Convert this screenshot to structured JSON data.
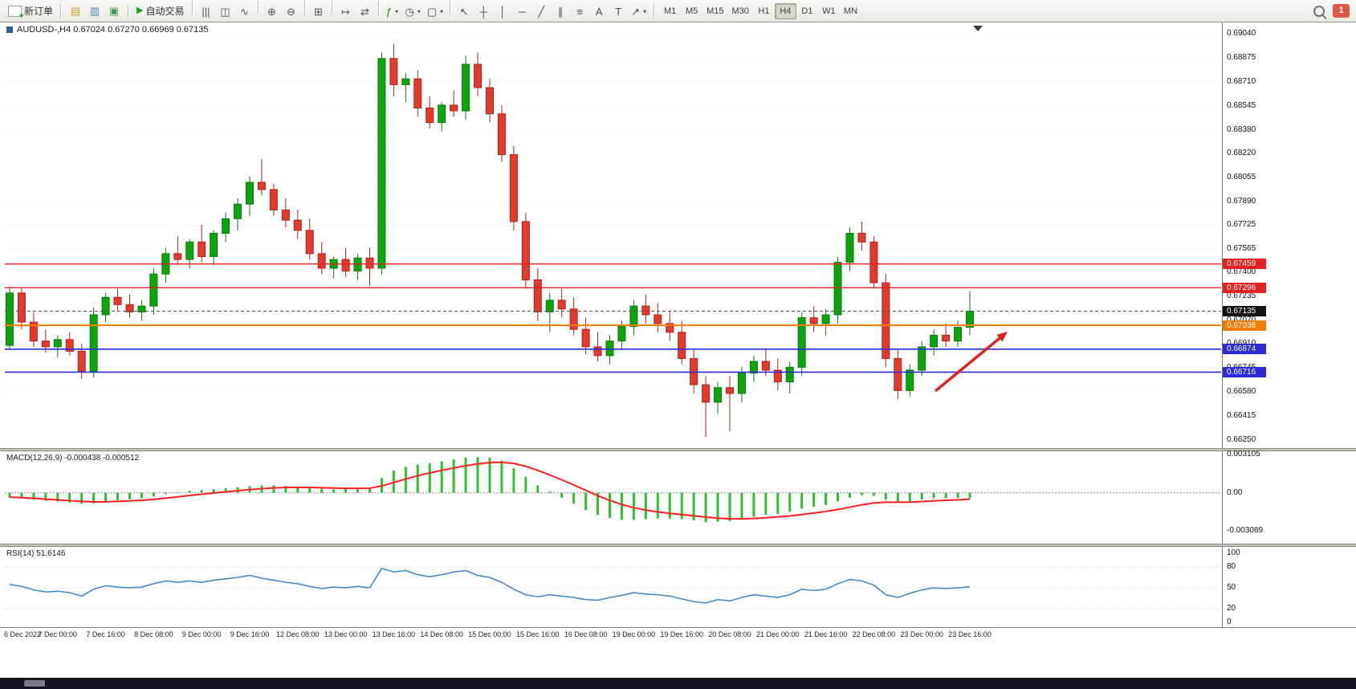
{
  "toolbar": {
    "new_order_label": "新订单",
    "autotrading_label": "自动交易",
    "autotrading_glyph": "▶",
    "notification_count": "1",
    "left_icons": [
      {
        "name": "market-watch-icon",
        "glyph": "▤",
        "color": "#C9A227"
      },
      {
        "name": "navigator-icon",
        "glyph": "▥",
        "color": "#4A7EBB"
      },
      {
        "name": "terminal-icon",
        "glyph": "▣",
        "color": "#3F9B4E"
      }
    ],
    "icon_buttons": [
      {
        "name": "bar-chart-icon",
        "glyph": "|||",
        "sep_before": true
      },
      {
        "name": "candlestick-chart-icon",
        "glyph": "◫"
      },
      {
        "name": "line-chart-icon",
        "glyph": "∿"
      },
      {
        "name": "zoom-in-icon",
        "glyph": "⊕",
        "sep_before": true
      },
      {
        "name": "zoom-out-icon",
        "glyph": "⊖"
      },
      {
        "name": "tile-windows-icon",
        "glyph": "⊞",
        "sep_before": true
      },
      {
        "name": "auto-scroll-icon",
        "glyph": "↦",
        "sep_before": true
      },
      {
        "name": "chart-shift-icon",
        "glyph": "⇄"
      },
      {
        "name": "indicators-icon",
        "glyph": "ƒ",
        "color": "#1e8f1e",
        "dropdown": true,
        "sep_before": true
      },
      {
        "name": "periods-icon",
        "glyph": "◷",
        "dropdown": true
      },
      {
        "name": "templates-icon",
        "glyph": "▢",
        "dropdown": true
      },
      {
        "name": "cursor-icon",
        "glyph": "↖",
        "sep_before": true
      },
      {
        "name": "crosshair-icon",
        "glyph": "┼"
      },
      {
        "name": "vertical-line-icon",
        "glyph": "│"
      },
      {
        "name": "horizontal-line-icon",
        "glyph": "─"
      },
      {
        "name": "trendline-icon",
        "glyph": "╱"
      },
      {
        "name": "channel-icon",
        "glyph": "∥"
      },
      {
        "name": "fibonacci-icon",
        "glyph": "≡"
      },
      {
        "name": "text-icon",
        "glyph": "A"
      },
      {
        "name": "label-icon",
        "glyph": "T"
      },
      {
        "name": "arrows-icon",
        "glyph": "↗",
        "dropdown": true
      }
    ],
    "timeframes": [
      {
        "label": "M1"
      },
      {
        "label": "M5"
      },
      {
        "label": "M15"
      },
      {
        "label": "M30"
      },
      {
        "label": "H1"
      },
      {
        "label": "H4",
        "active": true
      },
      {
        "label": "D1"
      },
      {
        "label": "W1"
      },
      {
        "label": "MN"
      }
    ]
  },
  "chart": {
    "header": "AUDUSD-,H4 0.67024 0.67270 0.66969 0.67135",
    "symbol": "AUDUSD-",
    "timeframe": "H4",
    "y_axis_labels": [
      "0.69040",
      "0.68875",
      "0.68710",
      "0.68545",
      "0.68380",
      "0.68220",
      "0.68055",
      "0.67890",
      "0.67725",
      "0.67565",
      "0.67400",
      "0.67235",
      "0.67070",
      "0.66910",
      "0.66745",
      "0.66580",
      "0.66415",
      "0.66250"
    ],
    "levels": [
      {
        "label": "0.67459",
        "value": 0.67459,
        "color": "#e22222",
        "width": 1.4
      },
      {
        "label": "0.67296",
        "value": 0.67296,
        "color": "#e22222",
        "width": 1.4
      },
      {
        "label": "0.67038",
        "value": 0.67038,
        "color": "#f57c00",
        "width": 2
      },
      {
        "label": "0.66874",
        "value": 0.66874,
        "color": "#2b2bd6",
        "width": 1.6
      },
      {
        "label": "0.66716",
        "value": 0.66716,
        "color": "#2b2bd6",
        "width": 1.6
      }
    ],
    "current_price": {
      "label": "0.67135",
      "value": 0.67135,
      "badge_color": "#111111",
      "line_color": "#555555"
    },
    "arrow_annotation": {
      "from": [
        1165,
        459
      ],
      "to": [
        1255,
        385
      ],
      "color": "#e01f1f"
    }
  },
  "macd": {
    "label": "MACD(12,26,9) -0.000438 -0.000512"
  },
  "rsi": {
    "label": "RSI(14) 51.6146"
  },
  "colors": {
    "candle_up": "#0DA50D",
    "candle_up_border": "#0A7A0A",
    "candle_down": "#E23A2E",
    "candle_down_border": "#B02318",
    "macd_histogram": "#2FBF2F",
    "macd_signal": "#FF1E1E",
    "rsi_line": "#3B85C8"
  },
  "chart_data": [
    {
      "type": "candlestick",
      "title": "AUDUSD-,H4",
      "ohlc_display": [
        0.67024,
        0.6727,
        0.66969,
        0.67135
      ],
      "ylim": [
        0.6625,
        0.6904
      ],
      "x_labels": [
        {
          "index": 0,
          "text": "6 Dec 2022"
        },
        {
          "index": 4,
          "text": "7 Dec 00:00"
        },
        {
          "index": 8,
          "text": "7 D­ec 16:00"
        },
        {
          "index": 12,
          "text": "8 Dec 08:00"
        },
        {
          "index": 16,
          "text": "9 Dec 00:00"
        },
        {
          "index": 20,
          "text": "9 Dec 16:00"
        },
        {
          "index": 24,
          "text": "12 Dec 08:00"
        },
        {
          "index": 28,
          "text": "13 Dec 00:00"
        },
        {
          "index": 32,
          "text": "13 Dec 16:00"
        },
        {
          "index": 36,
          "text": "14 Dec 08:00"
        },
        {
          "index": 40,
          "text": "15 Dec 00:00"
        },
        {
          "index": 44,
          "text": "15 Dec 16:00"
        },
        {
          "index": 48,
          "text": "16 Dec 08:00"
        },
        {
          "index": 52,
          "text": "19 Dec 00:00"
        },
        {
          "index": 56,
          "text": "19 Dec 16:00"
        },
        {
          "index": 60,
          "text": "20 Dec 08:00"
        },
        {
          "index": 64,
          "text": "21 Dec 00:00"
        },
        {
          "index": 68,
          "text": "21 Dec 16:00"
        },
        {
          "index": 72,
          "text": "22 Dec 08:00"
        },
        {
          "index": 76,
          "text": "23 Dec 00:00"
        },
        {
          "index": 80,
          "text": "23 Dec 16:00"
        }
      ],
      "candles": [
        [
          0.669,
          0.6729,
          0.6687,
          0.6726
        ],
        [
          0.6726,
          0.673,
          0.6701,
          0.6706
        ],
        [
          0.6706,
          0.6713,
          0.6689,
          0.6693
        ],
        [
          0.6693,
          0.6701,
          0.6685,
          0.6689
        ],
        [
          0.6689,
          0.6697,
          0.6682,
          0.6694
        ],
        [
          0.6694,
          0.6699,
          0.6683,
          0.6686
        ],
        [
          0.6686,
          0.6691,
          0.6667,
          0.6672
        ],
        [
          0.6672,
          0.6716,
          0.6668,
          0.6711
        ],
        [
          0.6711,
          0.6726,
          0.6706,
          0.6723
        ],
        [
          0.6723,
          0.6729,
          0.6713,
          0.6718
        ],
        [
          0.6718,
          0.6725,
          0.6709,
          0.6713
        ],
        [
          0.6713,
          0.6721,
          0.6707,
          0.6717
        ],
        [
          0.6717,
          0.6743,
          0.6711,
          0.6739
        ],
        [
          0.6739,
          0.6757,
          0.6733,
          0.6753
        ],
        [
          0.6753,
          0.6765,
          0.6745,
          0.6749
        ],
        [
          0.6749,
          0.6763,
          0.6743,
          0.6761
        ],
        [
          0.6761,
          0.6773,
          0.6747,
          0.6751
        ],
        [
          0.6751,
          0.6769,
          0.6745,
          0.6767
        ],
        [
          0.6767,
          0.6781,
          0.6761,
          0.6777
        ],
        [
          0.6777,
          0.6791,
          0.6769,
          0.6787
        ],
        [
          0.6787,
          0.6806,
          0.6779,
          0.6802
        ],
        [
          0.6802,
          0.6818,
          0.6793,
          0.6797
        ],
        [
          0.6797,
          0.6801,
          0.6779,
          0.6783
        ],
        [
          0.6783,
          0.6791,
          0.6771,
          0.6776
        ],
        [
          0.6776,
          0.6783,
          0.6763,
          0.6769
        ],
        [
          0.6769,
          0.6777,
          0.6749,
          0.6753
        ],
        [
          0.6753,
          0.6761,
          0.6739,
          0.6743
        ],
        [
          0.6743,
          0.6751,
          0.6736,
          0.6749
        ],
        [
          0.6749,
          0.6757,
          0.6737,
          0.6741
        ],
        [
          0.6741,
          0.6753,
          0.6735,
          0.675
        ],
        [
          0.675,
          0.6757,
          0.6731,
          0.6743
        ],
        [
          0.6743,
          0.6891,
          0.6739,
          0.6887
        ],
        [
          0.6887,
          0.6897,
          0.6861,
          0.6869
        ],
        [
          0.6869,
          0.6877,
          0.6857,
          0.6873
        ],
        [
          0.6873,
          0.6879,
          0.6847,
          0.6853
        ],
        [
          0.6853,
          0.6861,
          0.6839,
          0.6843
        ],
        [
          0.6843,
          0.6857,
          0.6837,
          0.6855
        ],
        [
          0.6855,
          0.6865,
          0.6847,
          0.6851
        ],
        [
          0.6851,
          0.6889,
          0.6845,
          0.6883
        ],
        [
          0.6883,
          0.6891,
          0.6861,
          0.6867
        ],
        [
          0.6867,
          0.6873,
          0.6843,
          0.6849
        ],
        [
          0.6849,
          0.6855,
          0.6816,
          0.6821
        ],
        [
          0.6821,
          0.6827,
          0.6769,
          0.6775
        ],
        [
          0.6775,
          0.6781,
          0.6729,
          0.6735
        ],
        [
          0.6735,
          0.6743,
          0.6707,
          0.6713
        ],
        [
          0.6713,
          0.6726,
          0.6699,
          0.6721
        ],
        [
          0.6721,
          0.6729,
          0.6709,
          0.6715
        ],
        [
          0.6715,
          0.6723,
          0.6697,
          0.6701
        ],
        [
          0.6701,
          0.6709,
          0.6684,
          0.6689
        ],
        [
          0.6689,
          0.6699,
          0.6679,
          0.6683
        ],
        [
          0.6683,
          0.6697,
          0.6677,
          0.6693
        ],
        [
          0.6693,
          0.6707,
          0.6687,
          0.6703
        ],
        [
          0.6703,
          0.6721,
          0.6697,
          0.6717
        ],
        [
          0.6717,
          0.6725,
          0.6705,
          0.6711
        ],
        [
          0.6711,
          0.6719,
          0.6699,
          0.6705
        ],
        [
          0.6705,
          0.6713,
          0.6693,
          0.6699
        ],
        [
          0.6699,
          0.6707,
          0.6677,
          0.6681
        ],
        [
          0.6681,
          0.6687,
          0.6657,
          0.6663
        ],
        [
          0.6663,
          0.6669,
          0.6627,
          0.6651
        ],
        [
          0.6651,
          0.6665,
          0.6643,
          0.6661
        ],
        [
          0.6661,
          0.6669,
          0.6631,
          0.6657
        ],
        [
          0.6657,
          0.6675,
          0.6651,
          0.6671
        ],
        [
          0.6671,
          0.6683,
          0.6665,
          0.6679
        ],
        [
          0.6679,
          0.6687,
          0.6669,
          0.6673
        ],
        [
          0.6673,
          0.6681,
          0.6659,
          0.6665
        ],
        [
          0.6665,
          0.6679,
          0.6657,
          0.6675
        ],
        [
          0.6675,
          0.6713,
          0.6669,
          0.6709
        ],
        [
          0.6709,
          0.6717,
          0.6699,
          0.6705
        ],
        [
          0.6705,
          0.6715,
          0.6697,
          0.6711
        ],
        [
          0.6711,
          0.6751,
          0.6705,
          0.6747
        ],
        [
          0.6747,
          0.6771,
          0.6741,
          0.6767
        ],
        [
          0.6767,
          0.6775,
          0.6755,
          0.6761
        ],
        [
          0.6761,
          0.6765,
          0.6729,
          0.6733
        ],
        [
          0.6733,
          0.6739,
          0.6675,
          0.6681
        ],
        [
          0.6681,
          0.6687,
          0.6653,
          0.6659
        ],
        [
          0.6659,
          0.6677,
          0.6655,
          0.6673
        ],
        [
          0.6673,
          0.6693,
          0.6669,
          0.6689
        ],
        [
          0.6689,
          0.6701,
          0.6683,
          0.6697
        ],
        [
          0.6697,
          0.6705,
          0.6689,
          0.6693
        ],
        [
          0.6693,
          0.6707,
          0.6689,
          0.67024
        ],
        [
          0.67024,
          0.6727,
          0.66969,
          0.67135
        ]
      ]
    },
    {
      "type": "bar",
      "title": "MACD(12,26,9)",
      "current": [
        -0.000438,
        -0.000512
      ],
      "ylim": [
        -0.003089,
        0.003105
      ],
      "scale_labels": [
        {
          "text": "0.003105",
          "value": 0.003105
        },
        {
          "text": "0.00",
          "value": 0
        },
        {
          "text": "-0.003089",
          "value": -0.003089
        }
      ],
      "histogram": [
        -0.0004,
        -0.00045,
        -0.00055,
        -0.00065,
        -0.00072,
        -0.0008,
        -0.0009,
        -0.00085,
        -0.0007,
        -0.0006,
        -0.00052,
        -0.00045,
        -0.0003,
        -0.0001,
        5e-05,
        0.00015,
        0.00022,
        0.0003,
        0.00038,
        0.00045,
        0.00055,
        0.0006,
        0.0006,
        0.00055,
        0.00048,
        0.0004,
        0.00032,
        0.00028,
        0.0003,
        0.00035,
        0.0004,
        0.0012,
        0.0018,
        0.0021,
        0.0023,
        0.0024,
        0.00255,
        0.0027,
        0.00285,
        0.0029,
        0.00285,
        0.0026,
        0.002,
        0.0013,
        0.0006,
        0.0001,
        -0.0004,
        -0.0009,
        -0.0014,
        -0.0018,
        -0.00205,
        -0.0022,
        -0.0022,
        -0.00215,
        -0.0021,
        -0.0021,
        -0.00215,
        -0.00225,
        -0.0024,
        -0.00235,
        -0.0023,
        -0.00215,
        -0.00195,
        -0.0018,
        -0.0017,
        -0.00155,
        -0.0013,
        -0.00115,
        -0.001,
        -0.0007,
        -0.0004,
        -0.0002,
        -0.00025,
        -0.00055,
        -0.00075,
        -0.0007,
        -0.00055,
        -0.00045,
        -0.00042,
        -0.00044,
        -0.000438
      ],
      "signal": [
        -0.00035,
        -0.0004,
        -0.00045,
        -0.00052,
        -0.00058,
        -0.00064,
        -0.0007,
        -0.00074,
        -0.00073,
        -0.0007,
        -0.00066,
        -0.00061,
        -0.00054,
        -0.00044,
        -0.00033,
        -0.00022,
        -0.00012,
        -2e-05,
        7e-05,
        0.00016,
        0.00025,
        0.00033,
        0.00039,
        0.00043,
        0.00044,
        0.00043,
        0.00041,
        0.00038,
        0.00036,
        0.00036,
        0.00037,
        0.00055,
        0.00083,
        0.00112,
        0.00138,
        0.00161,
        0.00182,
        0.00201,
        0.00219,
        0.00234,
        0.00245,
        0.00248,
        0.00238,
        0.00215,
        0.00182,
        0.00145,
        0.00105,
        0.00063,
        0.0002,
        -0.00023,
        -0.00062,
        -0.00095,
        -0.00121,
        -0.00141,
        -0.00156,
        -0.00167,
        -0.00177,
        -0.00187,
        -0.00198,
        -0.00206,
        -0.00211,
        -0.00212,
        -0.00209,
        -0.00203,
        -0.00196,
        -0.00188,
        -0.00177,
        -0.00165,
        -0.00152,
        -0.00136,
        -0.00117,
        -0.00098,
        -0.00083,
        -0.00077,
        -0.00077,
        -0.00076,
        -0.00072,
        -0.00066,
        -0.00061,
        -0.00058,
        -0.000512
      ]
    },
    {
      "type": "line",
      "title": "RSI(14)",
      "current": 51.6146,
      "ylim": [
        0,
        100
      ],
      "levels": [
        80,
        50,
        20
      ],
      "scale_labels": [
        {
          "text": "100",
          "value": 100
        },
        {
          "text": "80",
          "value": 80
        },
        {
          "text": "50",
          "value": 50
        },
        {
          "text": "20",
          "value": 20
        },
        {
          "text": "0",
          "value": 0
        }
      ],
      "values": [
        55,
        52,
        47,
        44,
        45,
        43,
        38,
        48,
        53,
        51,
        50,
        51,
        56,
        60,
        58,
        60,
        58,
        61,
        63,
        65,
        68,
        64,
        61,
        58,
        56,
        52,
        49,
        51,
        50,
        52,
        50,
        78,
        73,
        75,
        69,
        66,
        69,
        73,
        75,
        68,
        65,
        58,
        48,
        40,
        37,
        40,
        38,
        36,
        33,
        32,
        36,
        39,
        43,
        41,
        40,
        38,
        34,
        30,
        28,
        33,
        31,
        36,
        40,
        38,
        36,
        40,
        48,
        46,
        48,
        56,
        62,
        60,
        54,
        40,
        36,
        42,
        47,
        50,
        49,
        50,
        51.6146
      ]
    }
  ]
}
